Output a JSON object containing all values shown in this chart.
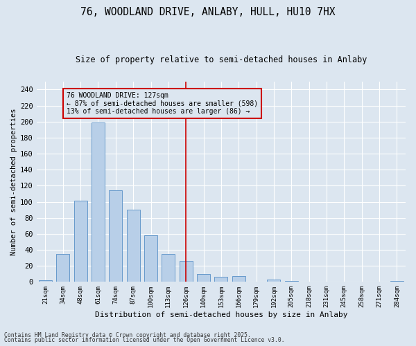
{
  "title1": "76, WOODLAND DRIVE, ANLABY, HULL, HU10 7HX",
  "title2": "Size of property relative to semi-detached houses in Anlaby",
  "xlabel": "Distribution of semi-detached houses by size in Anlaby",
  "ylabel": "Number of semi-detached properties",
  "categories": [
    "21sqm",
    "34sqm",
    "48sqm",
    "61sqm",
    "74sqm",
    "87sqm",
    "100sqm",
    "113sqm",
    "126sqm",
    "140sqm",
    "153sqm",
    "166sqm",
    "179sqm",
    "192sqm",
    "205sqm",
    "218sqm",
    "231sqm",
    "245sqm",
    "258sqm",
    "271sqm",
    "284sqm"
  ],
  "values": [
    2,
    35,
    101,
    199,
    114,
    90,
    58,
    35,
    26,
    10,
    6,
    7,
    0,
    3,
    1,
    0,
    0,
    0,
    0,
    0,
    1
  ],
  "bar_color": "#b8cfe8",
  "bar_edge_color": "#6699cc",
  "annotation_title": "76 WOODLAND DRIVE: 127sqm",
  "annotation_line1": "← 87% of semi-detached houses are smaller (598)",
  "annotation_line2": "13% of semi-detached houses are larger (86) →",
  "ylim": [
    0,
    250
  ],
  "yticks": [
    0,
    20,
    40,
    60,
    80,
    100,
    120,
    140,
    160,
    180,
    200,
    220,
    240
  ],
  "vline_color": "#cc0000",
  "annotation_box_color": "#cc0000",
  "bg_color": "#dce6f0",
  "footnote1": "Contains HM Land Registry data © Crown copyright and database right 2025.",
  "footnote2": "Contains public sector information licensed under the Open Government Licence v3.0."
}
